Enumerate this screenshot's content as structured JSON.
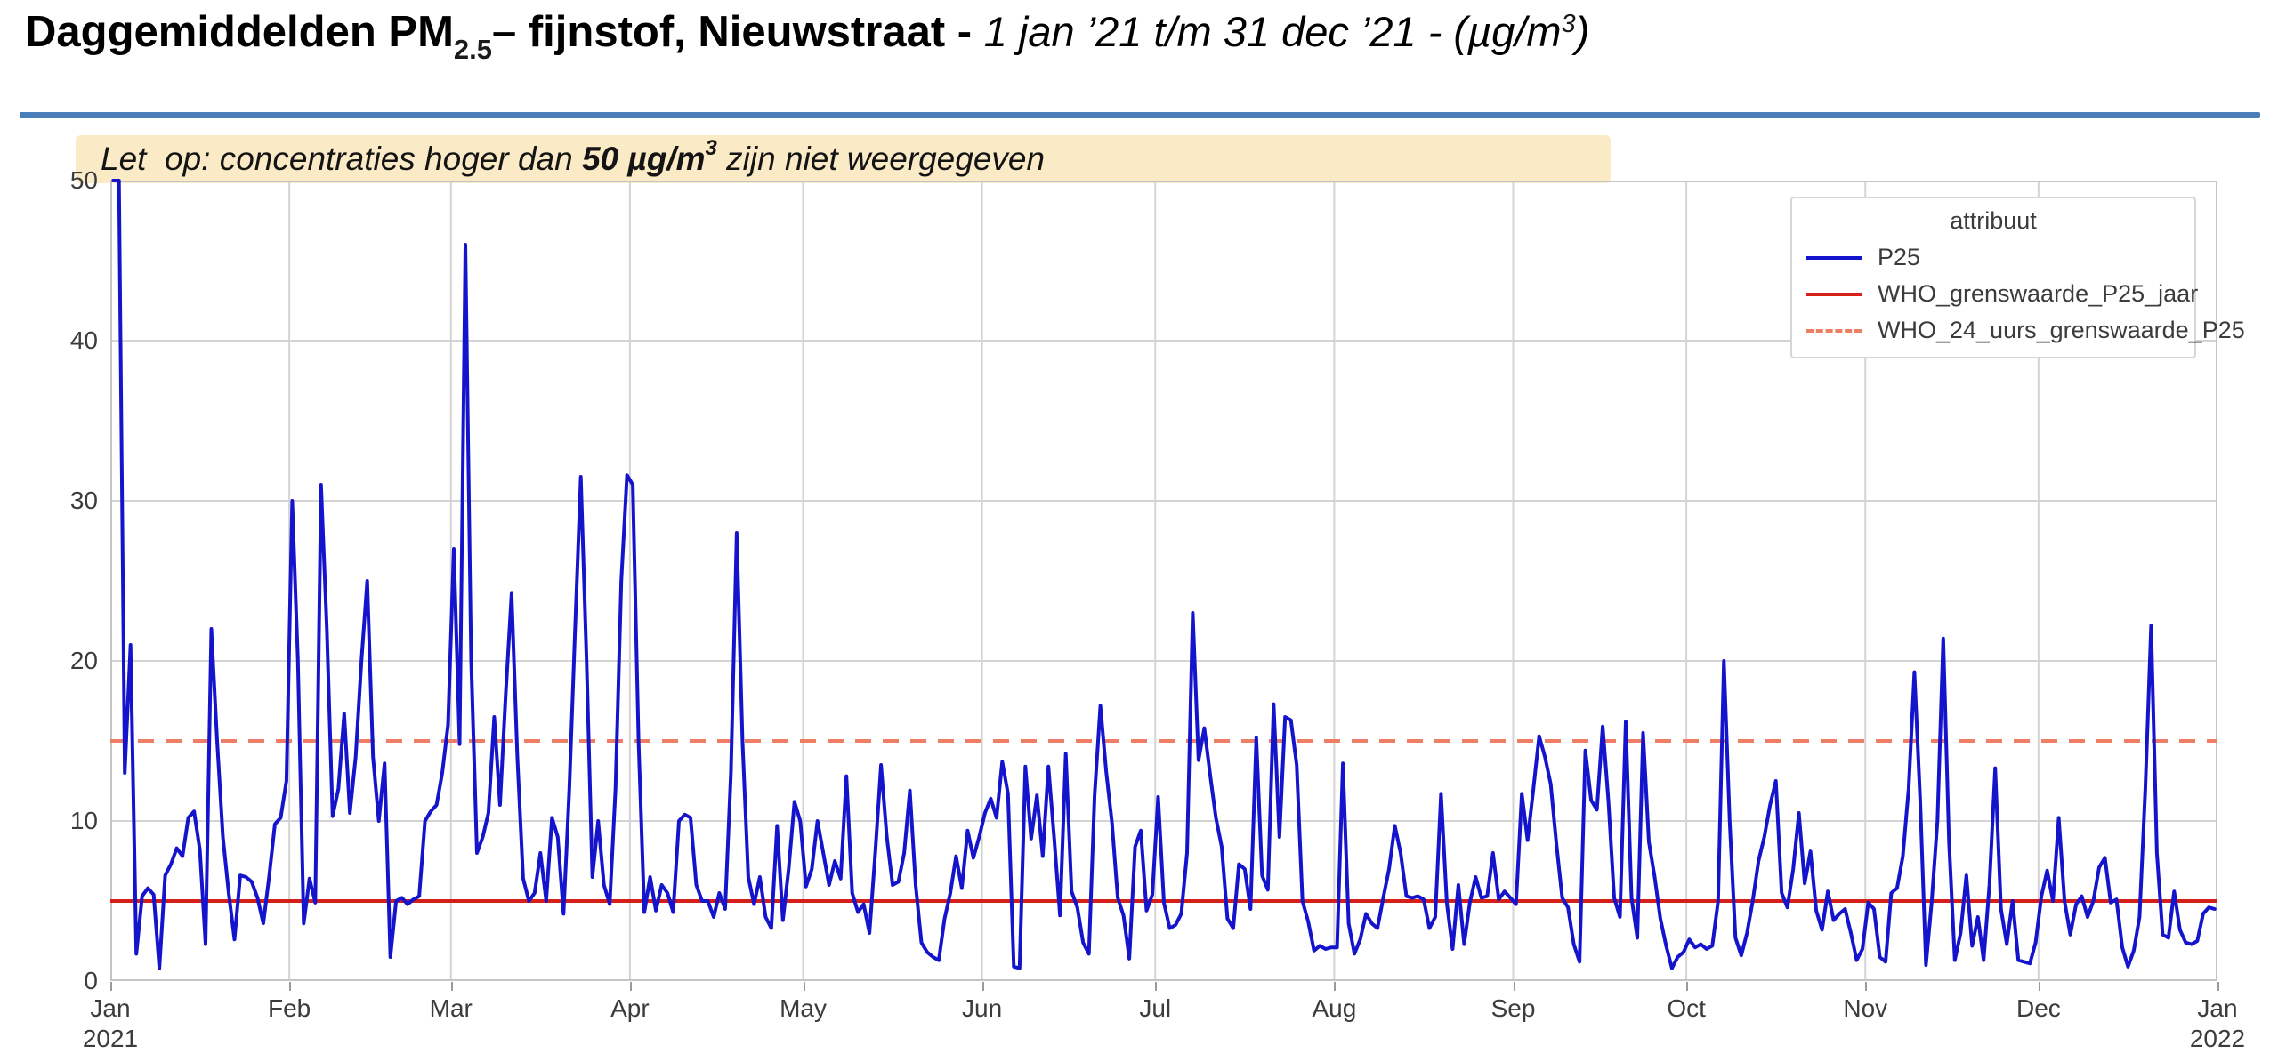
{
  "title": {
    "main": "Daggemiddelden PM",
    "subscript": "2.5",
    "middle": "– fijnstof, Nieuwstraat - ",
    "italic": "1 jan ’21 t/m 31 dec ’21 - (µg/m",
    "sup": "3",
    "close": ")"
  },
  "banner": {
    "pre": "Let  op: concentraties hoger dan ",
    "bold": "50 µg/m",
    "bold_sup": "3",
    "post": " zijn niet weergegeven"
  },
  "legend": {
    "title": "attribuut",
    "items": [
      {
        "label": "P25",
        "color": "#1414cc",
        "dash": "solid"
      },
      {
        "label": "WHO_grenswaarde_P25_jaar",
        "color": "#d42019",
        "dash": "solid"
      },
      {
        "label": "WHO_24_uurs_grenswaarde_P25",
        "color": "#ef7f64",
        "dash": "dashed"
      }
    ]
  },
  "chart_data": {
    "type": "line",
    "title": "Daggemiddelden PM2.5 - fijnstof, Nieuwstraat - 1 jan '21 t/m 31 dec '21 - (µg/m³)",
    "note": "Let op: concentraties hoger dan 50 µg/m³ zijn niet weergegeven",
    "xlabel": "",
    "ylabel": "",
    "ylim": [
      0,
      50
    ],
    "yticks": [
      0,
      10,
      20,
      30,
      40,
      50
    ],
    "grid": true,
    "legend_position": "top-right",
    "x_unit": "day-of-year 2021, daily values",
    "month_labels": [
      "Jan",
      "Feb",
      "Mar",
      "Apr",
      "May",
      "Jun",
      "Jul",
      "Aug",
      "Sep",
      "Oct",
      "Nov",
      "Dec",
      "Jan"
    ],
    "month_year_labels": {
      "0": "2021",
      "12": "2022"
    },
    "month_start_days": [
      0,
      31,
      59,
      90,
      120,
      151,
      181,
      212,
      243,
      273,
      304,
      334,
      365
    ],
    "colors": {
      "series": "#1414cc",
      "ref_annual": "#d42019",
      "ref_24h": "#ef7f64",
      "grid": "#d4d4d4",
      "border": "#c4c4c4"
    },
    "reference_lines": [
      {
        "name": "WHO_grenswaarde_P25_jaar",
        "value": 5,
        "style": "solid",
        "color": "#d42019"
      },
      {
        "name": "WHO_24_uurs_grenswaarde_P25",
        "value": 15,
        "style": "dashed",
        "color": "#ef7f64"
      }
    ],
    "series": [
      {
        "name": "P25",
        "color": "#1414cc",
        "clip_max": 50,
        "values": [
          50,
          50,
          13,
          21,
          1.7,
          5.3,
          5.8,
          5.4,
          0.8,
          6.6,
          7.3,
          8.3,
          7.8,
          10.2,
          10.6,
          8.2,
          2.3,
          22,
          15,
          9,
          5.5,
          2.6,
          6.6,
          6.5,
          6.2,
          5.2,
          3.6,
          6.5,
          9.8,
          10.2,
          12.5,
          30,
          20,
          3.6,
          6.4,
          4.9,
          31,
          22,
          10.3,
          12,
          16.7,
          10.5,
          14,
          20,
          25,
          14,
          10,
          13.6,
          1.5,
          5,
          5.2,
          4.8,
          5.1,
          5.3,
          10,
          10.6,
          11,
          13,
          16,
          27,
          14.8,
          46,
          20,
          8,
          9,
          10.5,
          16.5,
          11,
          18,
          24.2,
          14,
          6.4,
          5.0,
          5.5,
          8.0,
          5.0,
          10.2,
          9.0,
          4.2,
          12,
          22,
          31.5,
          20,
          6.5,
          10,
          6,
          4.8,
          12,
          25,
          31.6,
          31.0,
          15,
          4.3,
          6.5,
          4.4,
          6.0,
          5.5,
          4.3,
          10.0,
          10.4,
          10.2,
          6,
          5,
          5,
          4,
          5.5,
          4.5,
          13,
          28,
          15,
          6.5,
          4.8,
          6.5,
          4,
          3.3,
          9.7,
          3.8,
          7,
          11.2,
          10,
          5.9,
          7,
          10,
          8,
          6,
          7.5,
          6.4,
          12.8,
          5.5,
          4.3,
          4.8,
          3.0,
          8,
          13.5,
          9,
          6.0,
          6.2,
          8,
          11.9,
          6,
          2.4,
          1.8,
          1.5,
          1.3,
          3.9,
          5.5,
          7.8,
          5.8,
          9.4,
          7.7,
          9,
          10.5,
          11.4,
          10.2,
          13.7,
          11.7,
          0.9,
          0.8,
          13.4,
          8.9,
          11.6,
          7.8,
          13.4,
          8.9,
          4.1,
          14.2,
          5.6,
          4.6,
          2.4,
          1.7,
          11.6,
          17.2,
          13.1,
          9.9,
          5.2,
          4.1,
          1.4,
          8.4,
          9.4,
          4.4,
          5.4,
          11.5,
          4.9,
          3.3,
          3.5,
          4.2,
          8,
          23,
          13.8,
          15.8,
          12.9,
          10.2,
          8.4,
          3.9,
          3.3,
          7.3,
          7.0,
          4.5,
          15.2,
          6.6,
          5.7,
          17.3,
          9.0,
          16.5,
          16.3,
          13.5,
          5.0,
          3.7,
          1.9,
          2.2,
          2.0,
          2.1,
          2.1,
          13.6,
          3.6,
          1.7,
          2.6,
          4.2,
          3.6,
          3.3,
          5.2,
          7.0,
          9.7,
          8.0,
          5.3,
          5.2,
          5.3,
          5.1,
          3.3,
          4.0,
          11.7,
          4.9,
          2.0,
          6.0,
          2.3,
          4.9,
          6.5,
          5.2,
          5.3,
          8.0,
          5.1,
          5.6,
          5.2,
          4.8,
          11.7,
          8.8,
          12.0,
          15.3,
          14.0,
          12.3,
          8.5,
          5.2,
          4.6,
          2.3,
          1.2,
          14.4,
          11.3,
          10.7,
          15.9,
          11.2,
          5.2,
          4.0,
          16.2,
          5.2,
          2.7,
          15.5,
          8.7,
          6.5,
          3.9,
          2.2,
          0.8,
          1.5,
          1.8,
          2.6,
          2.1,
          2.3,
          2.0,
          2.2,
          5.0,
          20.0,
          10.0,
          2.7,
          1.6,
          3.0,
          5.0,
          7.5,
          9.0,
          11.0,
          12.5,
          5.5,
          4.6,
          7.0,
          10.5,
          6.1,
          8.1,
          4.4,
          3.2,
          5.6,
          3.8,
          4.2,
          4.5,
          3.0,
          1.3,
          2.0,
          4.9,
          4.5,
          1.5,
          1.2,
          5.5,
          5.8,
          7.8,
          12.0,
          19.3,
          11.3,
          1.0,
          5.0,
          10.0,
          21.4,
          8.7,
          1.3,
          3.0,
          6.6,
          2.2,
          4.0,
          1.3,
          6.0,
          13.3,
          4.5,
          2.3,
          5.0,
          1.3,
          1.2,
          1.1,
          2.4,
          5.3,
          6.9,
          5.0,
          10.2,
          5.0,
          2.9,
          4.8,
          5.3,
          4.0,
          5.0,
          7.1,
          7.7,
          4.9,
          5.1,
          2.1,
          0.9,
          1.9,
          4.0,
          12.0,
          22.2,
          8.0,
          2.9,
          2.7,
          5.6,
          3.2,
          2.4,
          2.3,
          2.5,
          4.2,
          4.6,
          4.5
        ]
      }
    ]
  }
}
